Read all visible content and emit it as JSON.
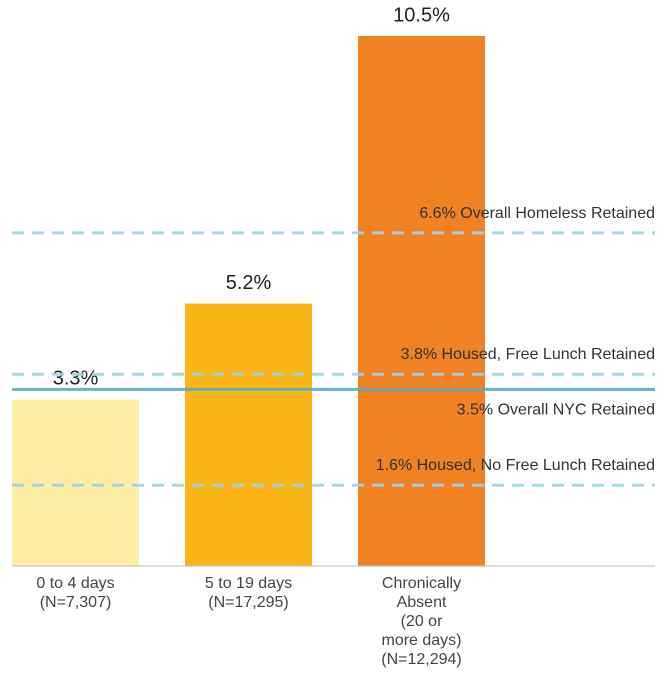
{
  "chart_data": {
    "type": "bar",
    "categories": [
      [
        "0 to 4 days",
        "(N=7,307)"
      ],
      [
        "5 to 19 days",
        "(N=17,295)"
      ],
      [
        "Chronically",
        "Absent",
        "(20 or",
        "more days)",
        "(N=12,294)"
      ]
    ],
    "values": [
      3.3,
      5.2,
      10.5
    ],
    "value_labels": [
      "3.3%",
      "5.2%",
      "10.5%"
    ],
    "colors": [
      "#fdeea6",
      "#f9b616",
      "#f08223"
    ],
    "ylim": [
      0,
      10.5
    ],
    "reference_lines": [
      {
        "value": 6.6,
        "value_label": "6.6%",
        "label": "Overall Homeless Retained",
        "style": "dashed",
        "color": "#9fd3e4"
      },
      {
        "value": 3.8,
        "value_label": "3.8%",
        "label": "Housed, Free Lunch Retained",
        "style": "dashed",
        "color": "#9fd3e4"
      },
      {
        "value": 3.5,
        "value_label": "3.5%",
        "label": "Overall NYC Retained",
        "style": "solid",
        "color": "#5aaabf"
      },
      {
        "value": 1.6,
        "value_label": "1.6%",
        "label": "Housed, No Free Lunch Retained",
        "style": "dashed",
        "color": "#9fd3e4"
      }
    ]
  }
}
